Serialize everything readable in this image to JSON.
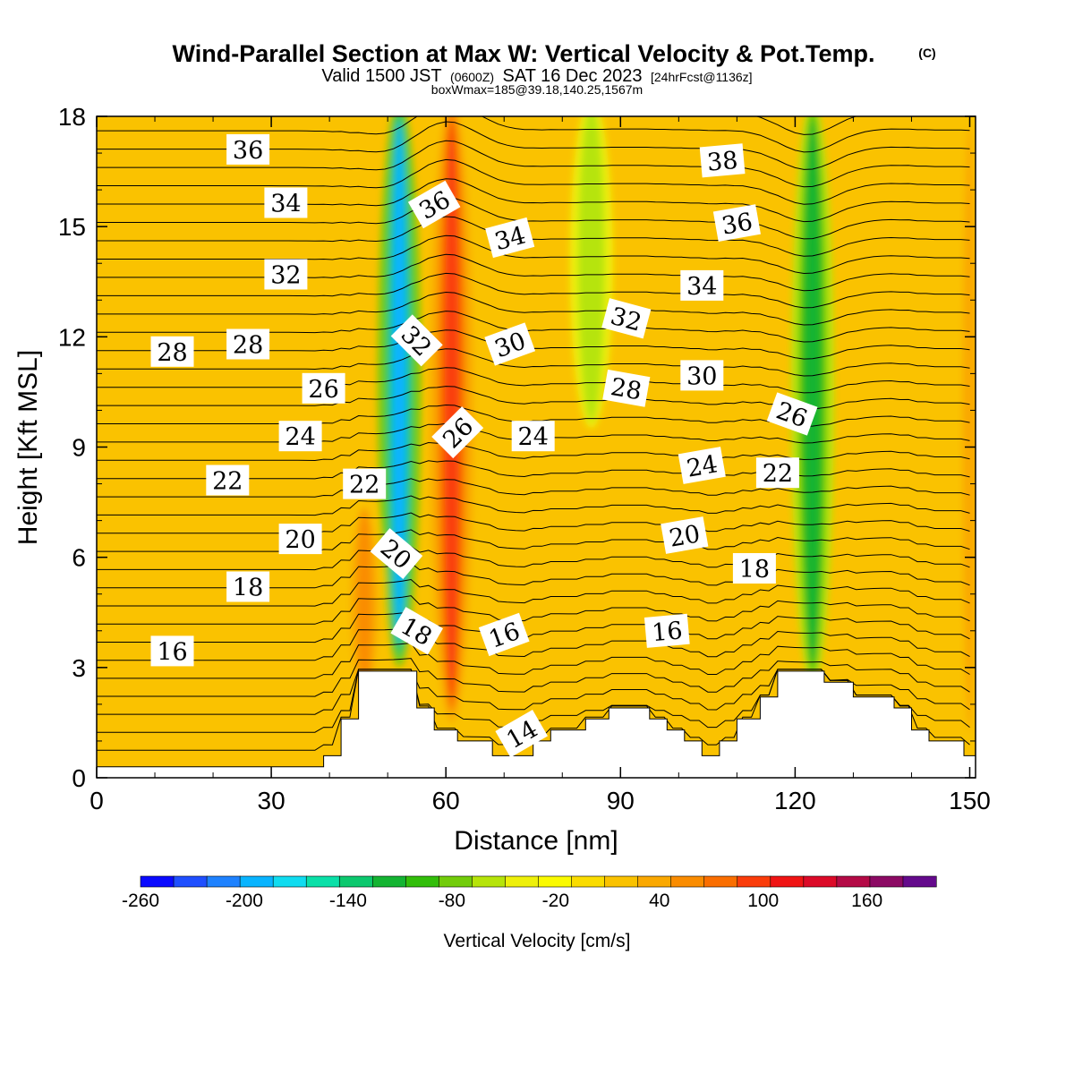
{
  "title": "Wind-Parallel Section at Max W: Vertical Velocity & Pot.Temp.",
  "title_mark": "(C)",
  "subtitle": {
    "valid": "Valid 1500 JST",
    "zulu": "(0600Z)",
    "date": "SAT 16 Dec 2023",
    "forecast": "[24hrFcst@1136z]"
  },
  "boxline": "boxWmax=185@39.18,140.25,1567m",
  "chart_data": {
    "type": "heatmap",
    "xlabel": "Distance [nm]",
    "ylabel": "Height [Kft MSL]",
    "xlim": [
      0,
      151
    ],
    "ylim": [
      0,
      18
    ],
    "x_ticks": [
      "0",
      "30",
      "60",
      "90",
      "120",
      "150"
    ],
    "y_ticks": [
      "0",
      "3",
      "6",
      "9",
      "12",
      "15",
      "18"
    ],
    "colorbar": {
      "label": "Vertical Velocity [cm/s]",
      "ticks": [
        "-260",
        "-200",
        "-140",
        "-80",
        "-20",
        "40",
        "100",
        "160"
      ],
      "min": -260,
      "max": 200,
      "step": 20,
      "colors": [
        "#0a0aff",
        "#1f4fff",
        "#1e82ff",
        "#08b4ff",
        "#10dcf0",
        "#0ae0a8",
        "#0cc86e",
        "#14b432",
        "#32be0a",
        "#72cc0a",
        "#b6e40a",
        "#eef00a",
        "#fafa00",
        "#fadc00",
        "#fac200",
        "#faa800",
        "#fa8c00",
        "#fa6e00",
        "#fa3c0a",
        "#f01414",
        "#dc0a28",
        "#b40a46",
        "#8c0a64",
        "#640a8c"
      ]
    },
    "w_features": [
      {
        "kind": "updraft",
        "x": 61,
        "top": 18,
        "bottom": 2,
        "w": 110
      },
      {
        "kind": "downdraft",
        "x": 52,
        "top": 18,
        "bottom": 3.5,
        "w": -200
      },
      {
        "kind": "downdraft",
        "x": 123,
        "top": 18,
        "bottom": 3,
        "w": -120
      },
      {
        "kind": "downdraft",
        "x": 85,
        "top": 18,
        "bottom": 10,
        "w": -60
      },
      {
        "kind": "updraft",
        "x": 46,
        "top": 7,
        "bottom": 2.5,
        "w": 60
      },
      {
        "kind": "updraft",
        "x": 150,
        "top": 18,
        "bottom": 1,
        "w": 40
      }
    ],
    "terrain": [
      {
        "x": 0,
        "h": 0.3
      },
      {
        "x": 39,
        "h": 0.3
      },
      {
        "x": 39,
        "h": 0.6
      },
      {
        "x": 42,
        "h": 0.6
      },
      {
        "x": 42,
        "h": 1.6
      },
      {
        "x": 45,
        "h": 1.6
      },
      {
        "x": 45,
        "h": 2.9
      },
      {
        "x": 55,
        "h": 2.9
      },
      {
        "x": 55,
        "h": 1.9
      },
      {
        "x": 58,
        "h": 1.9
      },
      {
        "x": 58,
        "h": 1.3
      },
      {
        "x": 62,
        "h": 1.3
      },
      {
        "x": 62,
        "h": 1.0
      },
      {
        "x": 68,
        "h": 1.0
      },
      {
        "x": 68,
        "h": 0.6
      },
      {
        "x": 75,
        "h": 0.6
      },
      {
        "x": 75,
        "h": 1.0
      },
      {
        "x": 78,
        "h": 1.0
      },
      {
        "x": 78,
        "h": 1.3
      },
      {
        "x": 84,
        "h": 1.3
      },
      {
        "x": 84,
        "h": 1.6
      },
      {
        "x": 88,
        "h": 1.6
      },
      {
        "x": 88,
        "h": 1.9
      },
      {
        "x": 95,
        "h": 1.9
      },
      {
        "x": 95,
        "h": 1.6
      },
      {
        "x": 98,
        "h": 1.6
      },
      {
        "x": 98,
        "h": 1.3
      },
      {
        "x": 101,
        "h": 1.3
      },
      {
        "x": 101,
        "h": 1.0
      },
      {
        "x": 104,
        "h": 1.0
      },
      {
        "x": 104,
        "h": 0.6
      },
      {
        "x": 107,
        "h": 0.6
      },
      {
        "x": 107,
        "h": 1.0
      },
      {
        "x": 110,
        "h": 1.0
      },
      {
        "x": 110,
        "h": 1.6
      },
      {
        "x": 114,
        "h": 1.6
      },
      {
        "x": 114,
        "h": 2.2
      },
      {
        "x": 117,
        "h": 2.2
      },
      {
        "x": 117,
        "h": 2.9
      },
      {
        "x": 125,
        "h": 2.9
      },
      {
        "x": 125,
        "h": 2.6
      },
      {
        "x": 130,
        "h": 2.6
      },
      {
        "x": 130,
        "h": 2.2
      },
      {
        "x": 137,
        "h": 2.2
      },
      {
        "x": 137,
        "h": 1.9
      },
      {
        "x": 140,
        "h": 1.9
      },
      {
        "x": 140,
        "h": 1.3
      },
      {
        "x": 143,
        "h": 1.3
      },
      {
        "x": 143,
        "h": 1.0
      },
      {
        "x": 149,
        "h": 1.0
      },
      {
        "x": 149,
        "h": 0.6
      },
      {
        "x": 151,
        "h": 0.6
      }
    ],
    "contour_labels": [
      {
        "text": "36",
        "x": 26,
        "y": 17.1,
        "rot": 0
      },
      {
        "text": "34",
        "x": 32.5,
        "y": 15.65,
        "rot": 0
      },
      {
        "text": "32",
        "x": 32.5,
        "y": 13.7,
        "rot": 0
      },
      {
        "text": "28",
        "x": 13,
        "y": 11.6,
        "rot": 0
      },
      {
        "text": "28",
        "x": 26,
        "y": 11.8,
        "rot": 0
      },
      {
        "text": "26",
        "x": 39,
        "y": 10.6,
        "rot": 0
      },
      {
        "text": "24",
        "x": 35,
        "y": 9.3,
        "rot": 0
      },
      {
        "text": "22",
        "x": 22.5,
        "y": 8.1,
        "rot": 0
      },
      {
        "text": "22",
        "x": 46,
        "y": 8.0,
        "rot": 0
      },
      {
        "text": "20",
        "x": 35,
        "y": 6.5,
        "rot": 0
      },
      {
        "text": "18",
        "x": 26,
        "y": 5.2,
        "rot": 0
      },
      {
        "text": "16",
        "x": 13,
        "y": 3.45,
        "rot": 0
      },
      {
        "text": "36",
        "x": 58,
        "y": 15.6,
        "rot": -30
      },
      {
        "text": "32",
        "x": 55,
        "y": 11.9,
        "rot": 45
      },
      {
        "text": "26",
        "x": 62,
        "y": 9.4,
        "rot": -45
      },
      {
        "text": "20",
        "x": 51.5,
        "y": 6.1,
        "rot": 40
      },
      {
        "text": "18",
        "x": 55,
        "y": 4.0,
        "rot": 30
      },
      {
        "text": "34",
        "x": 71,
        "y": 14.7,
        "rot": -15
      },
      {
        "text": "30",
        "x": 71,
        "y": 11.8,
        "rot": -20
      },
      {
        "text": "24",
        "x": 75,
        "y": 9.3,
        "rot": 0
      },
      {
        "text": "16",
        "x": 70,
        "y": 3.9,
        "rot": -20
      },
      {
        "text": "14",
        "x": 73,
        "y": 1.2,
        "rot": -30
      },
      {
        "text": "32",
        "x": 91,
        "y": 12.5,
        "rot": 15
      },
      {
        "text": "28",
        "x": 91,
        "y": 10.6,
        "rot": 10
      },
      {
        "text": "16",
        "x": 98,
        "y": 4.0,
        "rot": -5
      },
      {
        "text": "38",
        "x": 107.5,
        "y": 16.8,
        "rot": -5
      },
      {
        "text": "36",
        "x": 110,
        "y": 15.1,
        "rot": -10
      },
      {
        "text": "34",
        "x": 104,
        "y": 13.4,
        "rot": 0
      },
      {
        "text": "30",
        "x": 104,
        "y": 10.95,
        "rot": 0
      },
      {
        "text": "24",
        "x": 104,
        "y": 8.5,
        "rot": -10
      },
      {
        "text": "20",
        "x": 101,
        "y": 6.6,
        "rot": -10
      },
      {
        "text": "26",
        "x": 119.5,
        "y": 9.9,
        "rot": 20
      },
      {
        "text": "22",
        "x": 117,
        "y": 8.3,
        "rot": 0
      },
      {
        "text": "18",
        "x": 113,
        "y": 5.7,
        "rot": 0
      }
    ]
  }
}
